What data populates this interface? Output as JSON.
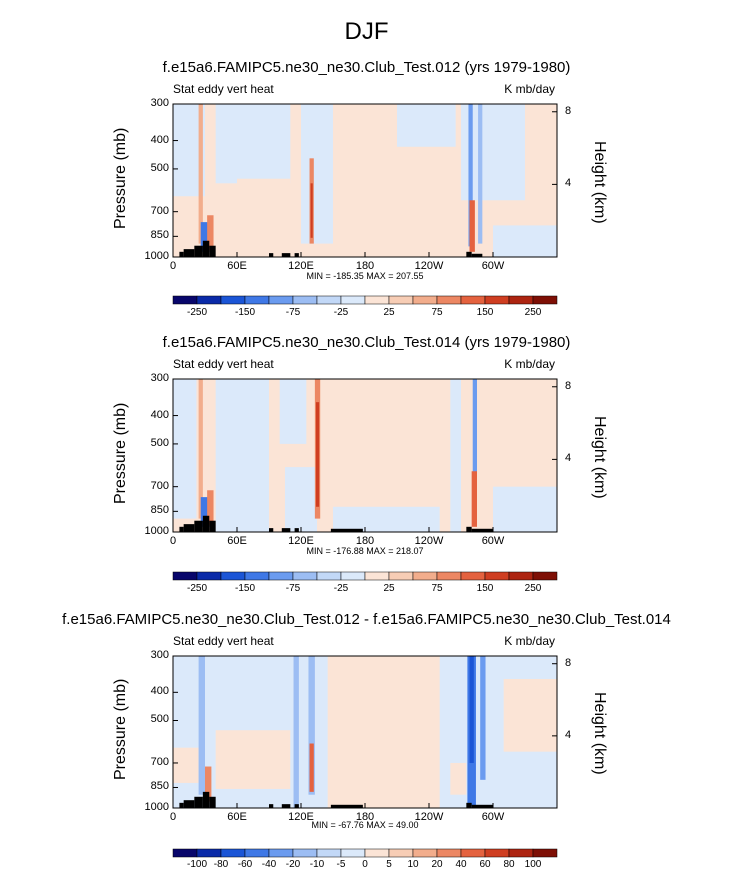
{
  "figure": {
    "title": "DJF"
  },
  "chart_data": [
    {
      "type": "heatmap",
      "title": "f.e15a6.FAMIPC5.ne30_ne30.Club_Test.012 (yrs 1979-1980)",
      "left_label": "Stat eddy vert heat",
      "units": "K mb/day",
      "ylabel": "Pressure (mb)",
      "ylabel_right": "Height (km)",
      "x_ticks": [
        "0",
        "60E",
        "120E",
        "180",
        "120W",
        "60W"
      ],
      "y_ticks": [
        "300",
        "400",
        "500",
        "700",
        "850",
        "1000"
      ],
      "y_ticks_right": [
        "8",
        "4"
      ],
      "minmax": "MIN = -185.35  MAX = 207.55",
      "colorbar_labels": [
        "-250",
        "-150",
        "-75",
        "-25",
        "25",
        "75",
        "150",
        "250"
      ],
      "colorbar_colors": [
        "#08066b",
        "#0a2aa8",
        "#1b55d6",
        "#3f78e6",
        "#6b9bef",
        "#9cbdf3",
        "#c2d8f7",
        "#dbe9fa",
        "#fbe4d6",
        "#f7cdb5",
        "#f2ad8c",
        "#ec8763",
        "#e4623f",
        "#cf3e21",
        "#ad2411",
        "#7e0f05"
      ],
      "ylim": [
        1000,
        300
      ],
      "xlim": [
        0,
        360
      ]
    },
    {
      "type": "heatmap",
      "title": "f.e15a6.FAMIPC5.ne30_ne30.Club_Test.014 (yrs 1979-1980)",
      "left_label": "Stat eddy vert heat",
      "units": "K mb/day",
      "ylabel": "Pressure (mb)",
      "ylabel_right": "Height (km)",
      "x_ticks": [
        "0",
        "60E",
        "120E",
        "180",
        "120W",
        "60W"
      ],
      "y_ticks": [
        "300",
        "400",
        "500",
        "700",
        "850",
        "1000"
      ],
      "y_ticks_right": [
        "8",
        "4"
      ],
      "minmax": "MIN = -176.88  MAX = 218.07",
      "colorbar_labels": [
        "-250",
        "-150",
        "-75",
        "-25",
        "25",
        "75",
        "150",
        "250"
      ],
      "colorbar_colors": [
        "#08066b",
        "#0a2aa8",
        "#1b55d6",
        "#3f78e6",
        "#6b9bef",
        "#9cbdf3",
        "#c2d8f7",
        "#dbe9fa",
        "#fbe4d6",
        "#f7cdb5",
        "#f2ad8c",
        "#ec8763",
        "#e4623f",
        "#cf3e21",
        "#ad2411",
        "#7e0f05"
      ],
      "ylim": [
        1000,
        300
      ],
      "xlim": [
        0,
        360
      ]
    },
    {
      "type": "heatmap",
      "title": "f.e15a6.FAMIPC5.ne30_ne30.Club_Test.012 - f.e15a6.FAMIPC5.ne30_ne30.Club_Test.014",
      "left_label": "Stat eddy vert heat",
      "units": "K mb/day",
      "ylabel": "Pressure (mb)",
      "ylabel_right": "Height (km)",
      "x_ticks": [
        "0",
        "60E",
        "120E",
        "180",
        "120W",
        "60W"
      ],
      "y_ticks": [
        "300",
        "400",
        "500",
        "700",
        "850",
        "1000"
      ],
      "y_ticks_right": [
        "8",
        "4"
      ],
      "minmax": "MIN = -67.76  MAX = 49.00",
      "colorbar_labels": [
        "-100",
        "-80",
        "-60",
        "-40",
        "-20",
        "-10",
        "-5",
        "0",
        "5",
        "10",
        "20",
        "40",
        "60",
        "80",
        "100"
      ],
      "colorbar_colors": [
        "#08066b",
        "#0a2aa8",
        "#1b55d6",
        "#3f78e6",
        "#6b9bef",
        "#9cbdf3",
        "#c2d8f7",
        "#dbe9fa",
        "#fbe4d6",
        "#f7cdb5",
        "#f2ad8c",
        "#ec8763",
        "#e4623f",
        "#cf3e21",
        "#ad2411",
        "#7e0f05"
      ],
      "ylim": [
        1000,
        300
      ],
      "xlim": [
        0,
        360
      ]
    }
  ]
}
